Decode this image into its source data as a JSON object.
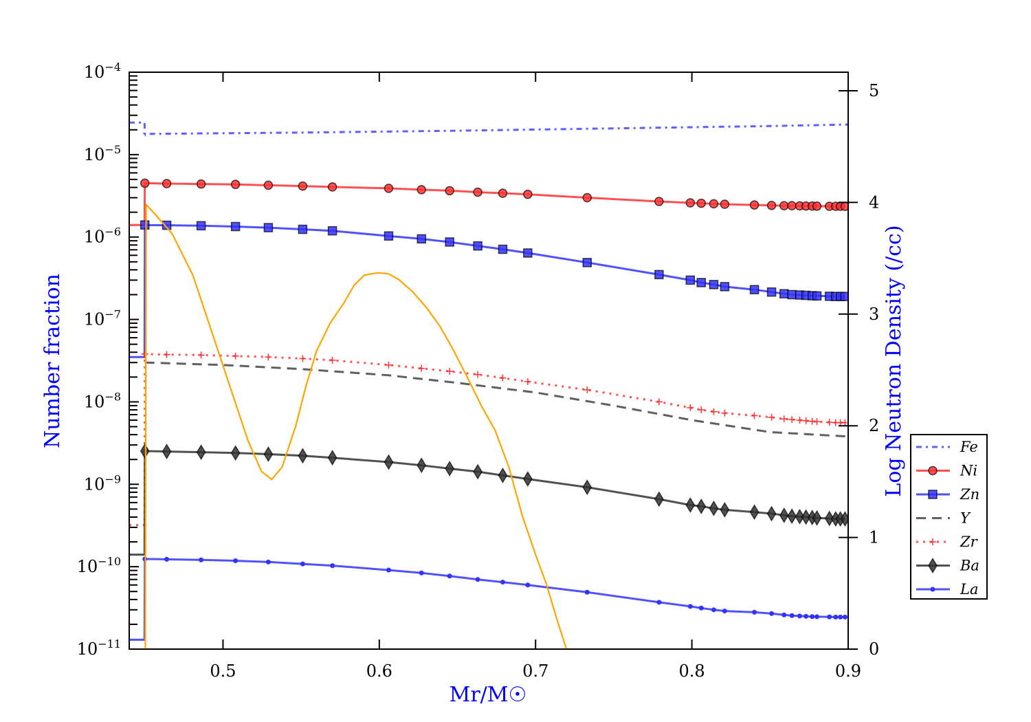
{
  "chart_data": {
    "type": "line",
    "xlabel": "Mr/M☉",
    "ylabel": "Number fraction",
    "ylabel_right": "Log Neutron Density (/cc)",
    "xlim": [
      0.44,
      0.9
    ],
    "ylim": [
      1e-11,
      0.0001
    ],
    "yscale": "log",
    "ylim_right": [
      0,
      5.17
    ],
    "x_ticks": [
      "0.5",
      "0.6",
      "0.7",
      "0.8",
      "0.9"
    ],
    "y_ticks": [
      "-4",
      "-5",
      "-6",
      "-7",
      "-8",
      "-9",
      "-10",
      "-11"
    ],
    "y_tick_base": "10",
    "y_ticks_right": [
      "0",
      "1",
      "2",
      "3",
      "4",
      "5"
    ],
    "legend_placement": "outside-right",
    "label_color": "#0000ff",
    "marker_x": [
      0.45,
      0.464,
      0.486,
      0.508,
      0.529,
      0.551,
      0.57,
      0.606,
      0.627,
      0.645,
      0.663,
      0.679,
      0.695,
      0.733,
      0.779,
      0.799,
      0.806,
      0.814,
      0.821,
      0.84,
      0.851,
      0.859,
      0.864,
      0.869,
      0.873,
      0.877,
      0.88,
      0.888,
      0.892,
      0.895,
      0.898
    ],
    "series": [
      {
        "name": "Fe",
        "color": "#4444ff",
        "style": "dashdot",
        "marker": "none",
        "pre": 2.45e-05,
        "points": [
          [
            0.45,
            1.78e-05
          ],
          [
            0.55,
            1.85e-05
          ],
          [
            0.65,
            1.95e-05
          ],
          [
            0.75,
            2.08e-05
          ],
          [
            0.85,
            2.22e-05
          ],
          [
            0.9,
            2.32e-05
          ]
        ]
      },
      {
        "name": "Ni",
        "color": "#ff3333",
        "style": "solid",
        "marker": "circle",
        "pre": 1.4e-06,
        "scale": 1e-06,
        "y": [
          4.5,
          4.45,
          4.4,
          4.35,
          4.25,
          4.15,
          4.05,
          3.9,
          3.75,
          3.65,
          3.5,
          3.4,
          3.3,
          3.0,
          2.7,
          2.6,
          2.57,
          2.53,
          2.5,
          2.45,
          2.42,
          2.4,
          2.4,
          2.39,
          2.38,
          2.38,
          2.37,
          2.36,
          2.36,
          2.36,
          2.36
        ]
      },
      {
        "name": "Zn",
        "color": "#3333ff",
        "style": "solid",
        "marker": "square",
        "pre": 3.5e-08,
        "scale": 1e-06,
        "y": [
          1.4,
          1.39,
          1.37,
          1.34,
          1.3,
          1.24,
          1.19,
          1.03,
          0.95,
          0.87,
          0.78,
          0.71,
          0.64,
          0.49,
          0.35,
          0.3,
          0.28,
          0.265,
          0.25,
          0.23,
          0.215,
          0.205,
          0.2,
          0.198,
          0.196,
          0.194,
          0.193,
          0.191,
          0.19,
          0.19,
          0.19
        ]
      },
      {
        "name": "Y",
        "color": "#444444",
        "style": "dashed",
        "marker": "none",
        "points": [
          [
            0.45,
            3e-08
          ],
          [
            0.5,
            2.8e-08
          ],
          [
            0.55,
            2.5e-08
          ],
          [
            0.606,
            2.1e-08
          ],
          [
            0.65,
            1.7e-08
          ],
          [
            0.7,
            1.3e-08
          ],
          [
            0.75,
            9e-09
          ],
          [
            0.8,
            6e-09
          ],
          [
            0.85,
            4.3e-09
          ],
          [
            0.9,
            3.8e-09
          ]
        ]
      },
      {
        "name": "Zr",
        "color": "#ff3333",
        "style": "dotted",
        "marker": "plus",
        "pre": 3.2e-10,
        "scale": 1e-08,
        "y": [
          3.8,
          3.75,
          3.7,
          3.6,
          3.5,
          3.35,
          3.2,
          2.8,
          2.55,
          2.35,
          2.15,
          1.95,
          1.76,
          1.4,
          1.0,
          0.85,
          0.8,
          0.76,
          0.73,
          0.68,
          0.65,
          0.62,
          0.61,
          0.6,
          0.59,
          0.58,
          0.575,
          0.565,
          0.56,
          0.56,
          0.56
        ]
      },
      {
        "name": "Ba",
        "color": "#333333",
        "style": "solid",
        "marker": "diamond",
        "pre": 1.4e-10,
        "scale": 1e-09,
        "y": [
          2.53,
          2.5,
          2.45,
          2.4,
          2.32,
          2.22,
          2.1,
          1.86,
          1.7,
          1.55,
          1.42,
          1.28,
          1.16,
          0.92,
          0.66,
          0.56,
          0.54,
          0.51,
          0.49,
          0.46,
          0.44,
          0.42,
          0.41,
          0.405,
          0.4,
          0.395,
          0.39,
          0.385,
          0.38,
          0.38,
          0.38
        ]
      },
      {
        "name": "La",
        "color": "#3333ff",
        "style": "solid",
        "marker": "dot",
        "pre": 1.3e-11,
        "scale": 1e-10,
        "y": [
          1.24,
          1.23,
          1.21,
          1.18,
          1.14,
          1.08,
          1.03,
          0.91,
          0.84,
          0.77,
          0.7,
          0.65,
          0.6,
          0.49,
          0.37,
          0.33,
          0.315,
          0.3,
          0.29,
          0.28,
          0.27,
          0.26,
          0.255,
          0.252,
          0.25,
          0.248,
          0.247,
          0.246,
          0.245,
          0.245,
          0.245
        ]
      }
    ],
    "neutron_density": {
      "color": "#ffa500",
      "axis": "right",
      "points": [
        [
          0.4503,
          0
        ],
        [
          0.4508,
          3.98
        ],
        [
          0.4543,
          3.93
        ],
        [
          0.4675,
          3.72
        ],
        [
          0.4807,
          3.35
        ],
        [
          0.4895,
          2.98
        ],
        [
          0.4983,
          2.61
        ],
        [
          0.5071,
          2.24
        ],
        [
          0.5159,
          1.87
        ],
        [
          0.5247,
          1.59
        ],
        [
          0.5312,
          1.52
        ],
        [
          0.5378,
          1.63
        ],
        [
          0.5466,
          2.0
        ],
        [
          0.5532,
          2.36
        ],
        [
          0.5599,
          2.67
        ],
        [
          0.5686,
          2.92
        ],
        [
          0.5774,
          3.1
        ],
        [
          0.584,
          3.26
        ],
        [
          0.5905,
          3.35
        ],
        [
          0.5993,
          3.37
        ],
        [
          0.606,
          3.36
        ],
        [
          0.6125,
          3.31
        ],
        [
          0.6213,
          3.2
        ],
        [
          0.6301,
          3.06
        ],
        [
          0.6389,
          2.89
        ],
        [
          0.6477,
          2.67
        ],
        [
          0.6565,
          2.43
        ],
        [
          0.6653,
          2.18
        ],
        [
          0.6741,
          1.96
        ],
        [
          0.6829,
          1.63
        ],
        [
          0.6916,
          1.19
        ],
        [
          0.7004,
          0.83
        ],
        [
          0.707,
          0.58
        ],
        [
          0.7136,
          0.27
        ],
        [
          0.7198,
          0
        ]
      ]
    }
  }
}
